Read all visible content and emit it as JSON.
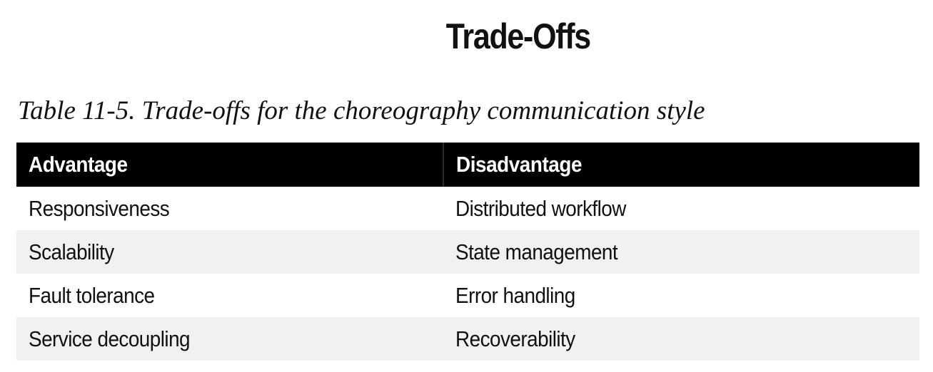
{
  "heading": "Trade-Offs",
  "caption": "Table 11-5. Trade-offs for the choreography communication style",
  "table": {
    "headers": [
      "Advantage",
      "Disadvantage"
    ],
    "rows": [
      [
        "Responsiveness",
        "Distributed workflow"
      ],
      [
        "Scalability",
        "State management"
      ],
      [
        "Fault tolerance",
        "Error handling"
      ],
      [
        "Service decoupling",
        "Recoverability"
      ]
    ]
  },
  "colors": {
    "header_background": "#000000",
    "header_text": "#ffffff",
    "stripe_background": "#f1f1f1"
  }
}
